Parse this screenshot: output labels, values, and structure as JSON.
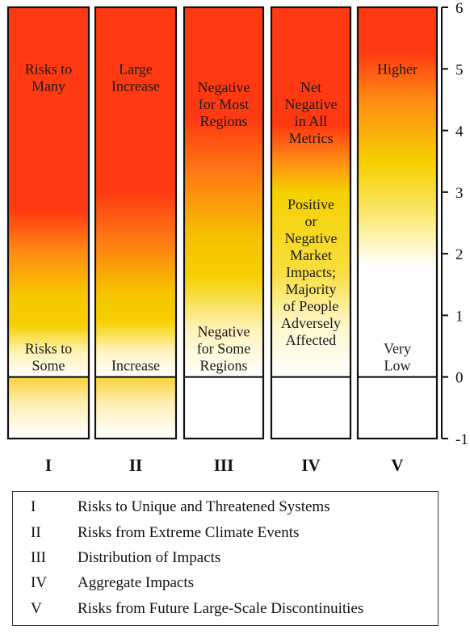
{
  "chart_data": {
    "type": "heatmap",
    "title": "",
    "ylabel": "",
    "ylim": [
      -1,
      6
    ],
    "yticks": [
      "6",
      "5",
      "4",
      "3",
      "2",
      "1",
      "0",
      "-1"
    ],
    "columns": [
      {
        "id": "I",
        "labels": [
          {
            "text": [
              "Risks to",
              "Many"
            ],
            "level": 5.0
          },
          {
            "text": [
              "Risks to",
              "Some"
            ],
            "level": 0.35
          }
        ]
      },
      {
        "id": "II",
        "labels": [
          {
            "text": [
              "Large",
              "Increase"
            ],
            "level": 5.0
          },
          {
            "text": [
              "Increase"
            ],
            "level": 0.2
          }
        ]
      },
      {
        "id": "III",
        "labels": [
          {
            "text": [
              "Negative",
              "for Most",
              "Regions"
            ],
            "level": 4.7
          },
          {
            "text": [
              "Negative",
              "for Some",
              "Regions"
            ],
            "level": 0.55
          }
        ]
      },
      {
        "id": "IV",
        "labels": [
          {
            "text": [
              "Net",
              "Negative",
              "in All",
              "Metrics"
            ],
            "level": 4.7
          },
          {
            "text": [
              "Positive",
              "or",
              "Negative",
              "Market",
              "Impacts;",
              "Majority",
              "of People",
              "Adversely",
              "Affected"
            ],
            "level": 2.8
          }
        ]
      },
      {
        "id": "V",
        "labels": [
          {
            "text": [
              "Higher"
            ],
            "level": 5.0
          },
          {
            "text": [
              "Very",
              "Low"
            ],
            "level": 0.5
          }
        ]
      }
    ],
    "color_scale": {
      "low": "#ffffff",
      "mid": "#f5d000",
      "high": "#ff3a12"
    }
  },
  "legend": [
    {
      "num": "I",
      "text": "Risks to Unique and Threatened Systems"
    },
    {
      "num": "II",
      "text": "Risks from Extreme Climate Events"
    },
    {
      "num": "III",
      "text": "Distribution of Impacts"
    },
    {
      "num": "IV",
      "text": "Aggregate Impacts"
    },
    {
      "num": "V",
      "text": "Risks from Future Large-Scale Discontinuities"
    }
  ]
}
